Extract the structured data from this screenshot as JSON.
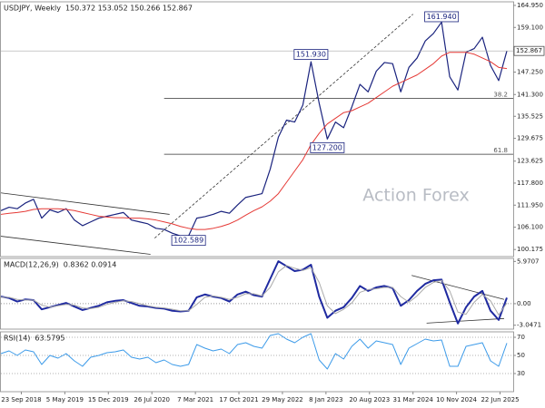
{
  "chart_data": [
    {
      "type": "line",
      "title": "USDJPY, Weekly",
      "subtitle": "150.372 153.052 150.266 152.867",
      "watermark": "Action Forex",
      "x": [
        0,
        6,
        12,
        18,
        24,
        30,
        36,
        42,
        48,
        54,
        60,
        66,
        72,
        78,
        84,
        90,
        96,
        102,
        108,
        114,
        120,
        126,
        132,
        138,
        144,
        150,
        156,
        162,
        168,
        174,
        180,
        186,
        192,
        198,
        204,
        210,
        216,
        222,
        228,
        234,
        240,
        246,
        252,
        258,
        264,
        270,
        276,
        282,
        288,
        294,
        300,
        306,
        312,
        318,
        324,
        330,
        336,
        342,
        348,
        354,
        360,
        366,
        372
      ],
      "xlim": [
        0,
        372
      ],
      "ylim": [
        98.3,
        165.9
      ],
      "yticks": [
        {
          "value": 164.95,
          "label": "164.950"
        },
        {
          "value": 159.1,
          "label": "159.100"
        },
        {
          "value": 153.25,
          "label": "153.250"
        },
        {
          "value": 147.25,
          "label": "147.250"
        },
        {
          "value": 141.3,
          "label": "141.300"
        },
        135.525,
        129.675,
        123.625,
        {
          "value": 117.8,
          "label": "117.800"
        },
        {
          "value": 111.95,
          "label": "111.950"
        },
        {
          "value": 106.1,
          "label": "106.100"
        },
        100.175
      ],
      "last_tag": true,
      "series": [
        {
          "color": "#1a237e",
          "width": 1.2,
          "values": [
            110.5,
            111.4,
            111.0,
            112.5,
            113.5,
            108.5,
            110.7,
            110.0,
            111.0,
            108.0,
            106.5,
            107.5,
            108.5,
            109.0,
            109.5,
            110.0,
            108.0,
            107.5,
            107.0,
            105.8,
            105.5,
            104.5,
            103.8,
            103.8,
            108.5,
            108.9,
            109.5,
            110.3,
            109.8,
            112.0,
            114.0,
            114.5,
            115.0,
            121.5,
            130.0,
            134.5,
            134.0,
            138.5,
            150.0,
            139.0,
            129.5,
            134.0,
            132.5,
            138.0,
            144.0,
            142.0,
            147.5,
            149.8,
            149.5,
            142.0,
            148.5,
            151.0,
            155.5,
            157.5,
            160.5,
            146.0,
            142.5,
            152.5,
            153.5,
            156.5,
            149.0,
            145.0,
            152.867
          ]
        },
        {
          "color": "#e53935",
          "width": 1,
          "values": [
            109.5,
            109.8,
            110,
            110.3,
            110.8,
            111,
            111,
            111,
            110.8,
            110.5,
            110,
            109.5,
            109,
            108.8,
            108.6,
            108.6,
            108.5,
            108.5,
            108.3,
            108,
            107.5,
            107,
            106.3,
            105.8,
            105.5,
            105.5,
            105.8,
            106.3,
            107,
            108,
            109.3,
            110.5,
            111.5,
            113,
            115,
            118,
            121,
            124,
            128,
            131,
            133.5,
            135,
            136.5,
            137,
            138,
            139,
            140.5,
            142,
            143.5,
            144.5,
            145.5,
            146.5,
            148,
            149.5,
            151.5,
            152.5,
            152.5,
            152.5,
            152,
            151,
            150,
            148.5,
            148.2
          ]
        }
      ],
      "levels": [
        {
          "value": 140.25,
          "label": "38.2",
          "from": 120
        },
        {
          "value": 125.45,
          "label": "61.8",
          "from": 120
        }
      ],
      "trendlines": [
        {
          "x1": 0,
          "y1": 115.2,
          "x2": 124,
          "y2": 109.5,
          "dashed": false
        },
        {
          "x1": 0,
          "y1": 103.7,
          "x2": 110,
          "y2": 98.9,
          "dashed": false
        },
        {
          "x1": 113,
          "y1": 103.2,
          "x2": 303,
          "y2": 162.6,
          "dashed": true
        }
      ],
      "annotations": [
        {
          "label": "151.930",
          "x": 228,
          "y": 151.93
        },
        {
          "label": "161.940",
          "x": 324,
          "y": 161.94
        },
        {
          "label": "127.200",
          "x": 240,
          "y": 127.2
        },
        {
          "label": "102.589",
          "x": 138,
          "y": 102.589
        }
      ]
    },
    {
      "type": "line",
      "title": "MACD(12,26,9)",
      "subtitle": "0.8362 0.0914",
      "x": [
        0,
        6,
        12,
        18,
        24,
        30,
        36,
        42,
        48,
        54,
        60,
        66,
        72,
        78,
        84,
        90,
        96,
        102,
        108,
        114,
        120,
        126,
        132,
        138,
        144,
        150,
        156,
        162,
        168,
        174,
        180,
        186,
        192,
        198,
        204,
        210,
        216,
        222,
        228,
        234,
        240,
        246,
        252,
        258,
        264,
        270,
        276,
        282,
        288,
        294,
        300,
        306,
        312,
        318,
        324,
        330,
        336,
        342,
        348,
        354,
        360,
        366,
        372
      ],
      "xlim": [
        0,
        372
      ],
      "ylim": [
        -3.6,
        6.4
      ],
      "yticks": [
        5.9707,
        {
          "value": 0,
          "label": "0.00"
        },
        -3.0471
      ],
      "series": [
        {
          "color": "#1f2aa0",
          "width": 2,
          "values": [
            1.0,
            0.8,
            0.3,
            0.6,
            0.5,
            -0.8,
            -0.5,
            -0.2,
            0.1,
            -0.4,
            -0.9,
            -0.6,
            -0.3,
            0.2,
            0.4,
            0.5,
            0.1,
            -0.3,
            -0.4,
            -0.6,
            -0.7,
            -1.0,
            -1.1,
            -1.0,
            0.9,
            1.3,
            1.0,
            0.8,
            0.3,
            1.3,
            1.7,
            1.2,
            1.0,
            3.5,
            6.0,
            5.3,
            4.6,
            4.8,
            5.5,
            1.0,
            -2.0,
            -1.0,
            -0.5,
            0.8,
            2.5,
            1.8,
            2.3,
            2.5,
            2.2,
            -0.3,
            0.5,
            1.8,
            2.8,
            3.3,
            3.4,
            0.2,
            -2.8,
            -0.5,
            1.0,
            1.8,
            -1.0,
            -2.3,
            0.8362
          ]
        },
        {
          "color": "#aaaaaa",
          "width": 1,
          "values": [
            0.9,
            0.9,
            0.6,
            0.5,
            0.5,
            -0.2,
            -0.5,
            -0.3,
            -0.1,
            -0.2,
            -0.6,
            -0.7,
            -0.5,
            -0.1,
            0.2,
            0.4,
            0.3,
            0.0,
            -0.3,
            -0.5,
            -0.6,
            -0.8,
            -1.0,
            -1.0,
            -0.1,
            0.9,
            1.1,
            0.9,
            0.6,
            0.9,
            1.4,
            1.4,
            1.1,
            2.3,
            4.5,
            5.4,
            5.0,
            4.7,
            5.1,
            3.0,
            -0.3,
            -1.4,
            -0.8,
            0.1,
            1.6,
            2.0,
            2.1,
            2.3,
            2.3,
            1.0,
            0.2,
            1.1,
            2.3,
            3.0,
            3.3,
            1.8,
            -1.2,
            -1.5,
            0.2,
            1.3,
            0.4,
            -1.6,
            0.0914
          ]
        }
      ],
      "zero_line": true,
      "trendlines": [
        {
          "x1": 302,
          "y1": 4.0,
          "x2": 370,
          "y2": 0.6,
          "dashed": false
        },
        {
          "x1": 313,
          "y1": -2.75,
          "x2": 370,
          "y2": -2.1,
          "dashed": false
        }
      ]
    },
    {
      "type": "line",
      "title": "RSI(14)",
      "subtitle": "63.5795",
      "x": [
        0,
        6,
        12,
        18,
        24,
        30,
        36,
        42,
        48,
        54,
        60,
        66,
        72,
        78,
        84,
        90,
        96,
        102,
        108,
        114,
        120,
        126,
        132,
        138,
        144,
        150,
        156,
        162,
        168,
        174,
        180,
        186,
        192,
        198,
        204,
        210,
        216,
        222,
        228,
        234,
        240,
        246,
        252,
        258,
        264,
        270,
        276,
        282,
        288,
        294,
        300,
        306,
        312,
        318,
        324,
        330,
        336,
        342,
        348,
        354,
        360,
        366,
        372
      ],
      "xlim": [
        0,
        372
      ],
      "ylim": [
        10,
        76
      ],
      "yticks": [
        70,
        50,
        30
      ],
      "grid": true,
      "series": [
        {
          "color": "#3d9be9",
          "width": 1,
          "values": [
            52,
            55,
            50,
            56,
            54,
            40,
            50,
            47,
            52,
            44,
            38,
            48,
            50,
            53,
            54,
            56,
            48,
            46,
            48,
            42,
            45,
            40,
            38,
            40,
            62,
            58,
            55,
            57,
            52,
            62,
            64,
            60,
            58,
            72,
            74,
            68,
            64,
            70,
            74,
            45,
            35,
            52,
            46,
            60,
            68,
            58,
            66,
            64,
            62,
            40,
            58,
            63,
            68,
            66,
            67,
            38,
            38,
            60,
            62,
            64,
            44,
            38,
            63.5795
          ]
        }
      ],
      "xticks": [
        {
          "value": 15,
          "label": "23 Sep 2018"
        },
        {
          "value": 47,
          "label": "5 May 2019"
        },
        {
          "value": 79,
          "label": "15 Dec 2019"
        },
        {
          "value": 111,
          "label": "26 Jul 2020"
        },
        {
          "value": 143,
          "label": "7 Mar 2021"
        },
        {
          "value": 175,
          "label": "17 Oct 2021"
        },
        {
          "value": 207,
          "label": "29 May 2022"
        },
        {
          "value": 239,
          "label": "8 Jan 2023"
        },
        {
          "value": 271,
          "label": "20 Aug 2023"
        },
        {
          "value": 303,
          "label": "31 Mar 2024"
        },
        {
          "value": 335,
          "label": "10 Nov 2024"
        },
        {
          "value": 367,
          "label": "22 Jun 2025"
        }
      ]
    }
  ]
}
